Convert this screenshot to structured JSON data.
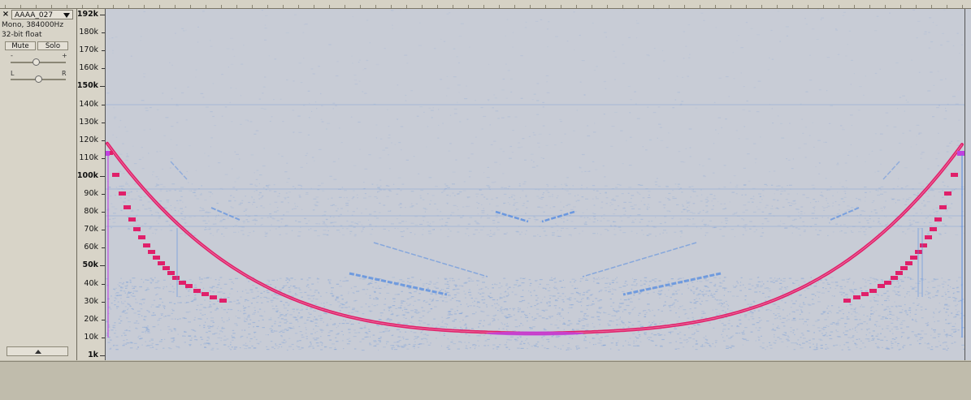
{
  "track": {
    "close_glyph": "×",
    "name": "AAAA_027",
    "chevron_icon": "chevron-down-icon",
    "format_line1": "Mono, 384000Hz",
    "format_line2": "32-bit float",
    "mute_label": "Mute",
    "solo_label": "Solo",
    "gain_minus": "-",
    "gain_plus": "+",
    "pan_left": "L",
    "pan_right": "R",
    "gain_level": 0.45,
    "pan_level": 0.5,
    "collapse_icon": "triangle-up-icon"
  },
  "ruler": {
    "labels": [
      {
        "text": "192k",
        "major": true
      },
      {
        "text": "180k",
        "major": false
      },
      {
        "text": "170k",
        "major": false
      },
      {
        "text": "160k",
        "major": false
      },
      {
        "text": "150k",
        "major": true
      },
      {
        "text": "140k",
        "major": false
      },
      {
        "text": "130k",
        "major": false
      },
      {
        "text": "120k",
        "major": false
      },
      {
        "text": "110k",
        "major": false
      },
      {
        "text": "100k",
        "major": true
      },
      {
        "text": "90k",
        "major": false
      },
      {
        "text": "80k",
        "major": false
      },
      {
        "text": "70k",
        "major": false
      },
      {
        "text": "60k",
        "major": false
      },
      {
        "text": "50k",
        "major": true
      },
      {
        "text": "40k",
        "major": false
      },
      {
        "text": "30k",
        "major": false
      },
      {
        "text": "20k",
        "major": false
      },
      {
        "text": "10k",
        "major": false
      },
      {
        "text": "1k",
        "major": true
      }
    ]
  },
  "spectrogram": {
    "background_color": "#c8ccd6",
    "noise_color": "#7fa2d8",
    "call_color_main": "#e0206a",
    "call_color_tip": "#c040e0",
    "echo_color": "#5a8ee0"
  }
}
